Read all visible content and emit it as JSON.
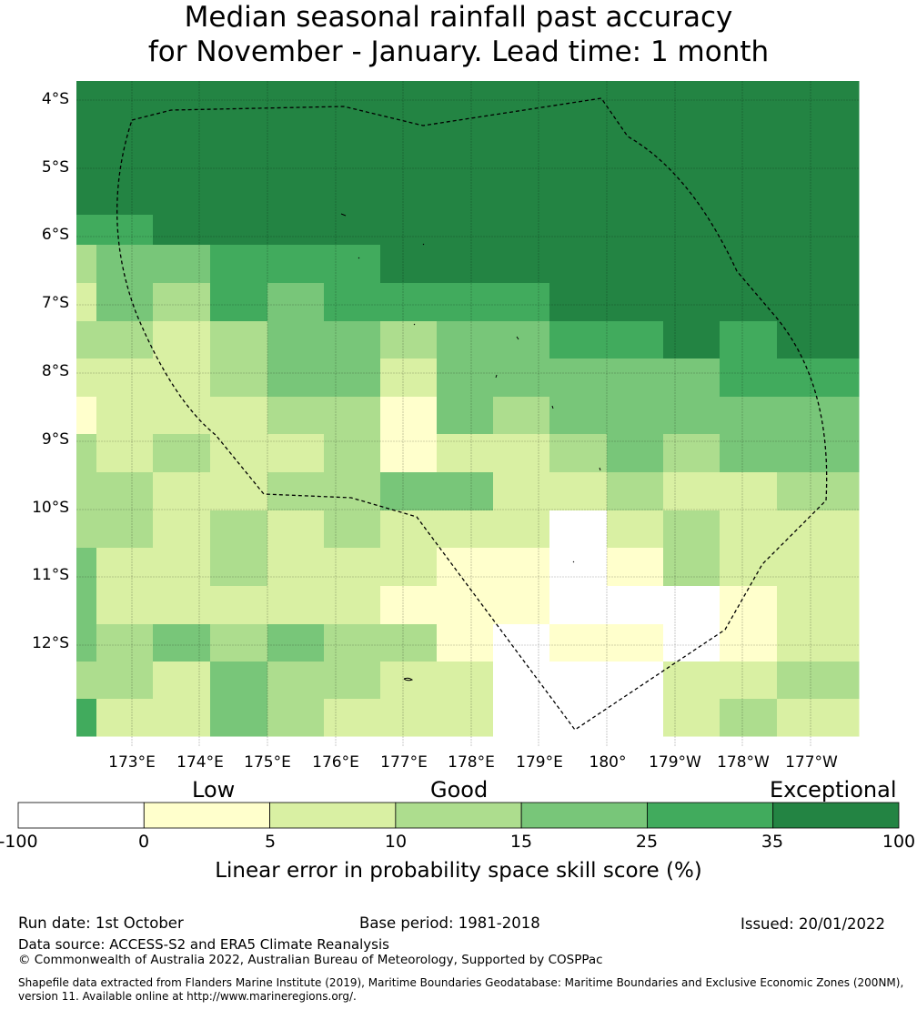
{
  "title_line1": "Median seasonal rainfall past accuracy",
  "title_line2": "for November - January. Lead time: 1 month",
  "lat_labels": [
    "4°S",
    "5°S",
    "6°S",
    "7°S",
    "8°S",
    "9°S",
    "10°S",
    "11°S",
    "12°S"
  ],
  "lon_labels": [
    "173°E",
    "174°E",
    "175°E",
    "176°E",
    "177°E",
    "178°E",
    "179°E",
    "180°",
    "179°W",
    "178°W",
    "177°W"
  ],
  "colorbar": {
    "categories": [
      "Low",
      "Good",
      "Exceptional"
    ],
    "ticks": [
      "-100",
      "0",
      "5",
      "10",
      "15",
      "25",
      "35",
      "100"
    ],
    "colors": [
      "#ffffff",
      "#ffffcc",
      "#d9f0a3",
      "#addd8e",
      "#78c679",
      "#41ab5d",
      "#238443"
    ],
    "label": "Linear error in probability space skill score (%)"
  },
  "grid_levels": [
    [
      6,
      6,
      6,
      6,
      6,
      6,
      6,
      6,
      6,
      6,
      6,
      6,
      6,
      6
    ],
    [
      6,
      6,
      6,
      6,
      6,
      6,
      6,
      6,
      6,
      6,
      6,
      6,
      6,
      6
    ],
    [
      6,
      6,
      6,
      6,
      6,
      6,
      6,
      6,
      6,
      6,
      6,
      6,
      6,
      6
    ],
    [
      6,
      6,
      6,
      6,
      6,
      6,
      6,
      6,
      6,
      6,
      6,
      6,
      6,
      6
    ],
    [
      5,
      5,
      6,
      6,
      6,
      6,
      6,
      6,
      6,
      6,
      6,
      6,
      6,
      6
    ],
    [
      3,
      4,
      4,
      5,
      5,
      5,
      6,
      6,
      6,
      6,
      6,
      6,
      6,
      6
    ],
    [
      2,
      4,
      3,
      5,
      4,
      5,
      5,
      5,
      5,
      6,
      6,
      6,
      6,
      6
    ],
    [
      3,
      3,
      2,
      3,
      4,
      4,
      3,
      4,
      4,
      5,
      5,
      6,
      5,
      6
    ],
    [
      2,
      2,
      2,
      3,
      4,
      4,
      2,
      4,
      4,
      4,
      4,
      4,
      5,
      5
    ],
    [
      1,
      2,
      2,
      2,
      3,
      3,
      1,
      4,
      3,
      4,
      4,
      4,
      4,
      4
    ],
    [
      3,
      2,
      3,
      2,
      2,
      3,
      1,
      2,
      2,
      3,
      4,
      3,
      4,
      4
    ],
    [
      3,
      3,
      2,
      2,
      3,
      3,
      4,
      4,
      2,
      2,
      3,
      2,
      2,
      3
    ],
    [
      3,
      3,
      2,
      3,
      2,
      3,
      2,
      2,
      2,
      0,
      2,
      3,
      2,
      2
    ],
    [
      4,
      2,
      2,
      3,
      2,
      2,
      2,
      1,
      1,
      0,
      1,
      3,
      2,
      2
    ],
    [
      4,
      2,
      2,
      2,
      2,
      2,
      1,
      1,
      1,
      0,
      0,
      0,
      1,
      2
    ],
    [
      4,
      3,
      4,
      3,
      4,
      3,
      3,
      1,
      0,
      1,
      1,
      0,
      1,
      2
    ],
    [
      3,
      3,
      2,
      4,
      3,
      3,
      2,
      2,
      0,
      0,
      0,
      2,
      2,
      3
    ],
    [
      5,
      2,
      2,
      4,
      3,
      2,
      2,
      2,
      0,
      0,
      0,
      2,
      3,
      2
    ]
  ],
  "footer": {
    "run_date": "Run date: 1st October",
    "base_period": "Base period: 1981-2018",
    "issued": "Issued: 20/01/2022",
    "data_source": "Data source: ACCESS-S2 and ERA5 Climate Reanalysis",
    "copyright": "© Commonwealth of Australia 2022, Australian Bureau of Meteorology, Supported by COSPPac",
    "shapefile_line1": "Shapefile data extracted from Flanders Marine Institute (2019), Maritime Boundaries Geodatabase: Maritime Boundaries and Exclusive Economic Zones (200NM),",
    "shapefile_line2": "version 11. Available online at http://www.marineregions.org/."
  }
}
